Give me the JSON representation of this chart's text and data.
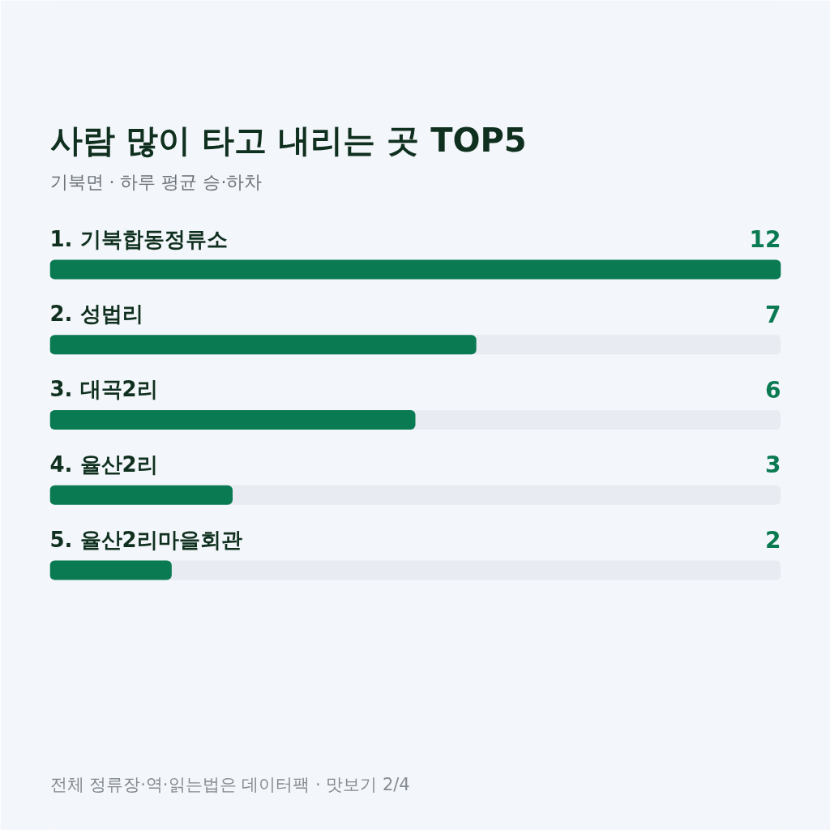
{
  "chart_data": {
    "type": "bar",
    "orientation": "horizontal",
    "title": "사람 많이 타고 내리는 곳 TOP5",
    "subtitle": "기북면 · 하루 평균 승·하차",
    "categories": [
      "1. 기북합동정류소",
      "2. 성법리",
      "3. 대곡2리",
      "4. 율산2리",
      "5. 율산2리마을회관"
    ],
    "values": [
      12,
      7,
      6,
      3,
      2
    ],
    "color": "#0a7a52",
    "data_labels": true,
    "annotations": [
      "전체 정류장·역·읽는법은 데이터팩 · 맛보기 2/4"
    ]
  }
}
